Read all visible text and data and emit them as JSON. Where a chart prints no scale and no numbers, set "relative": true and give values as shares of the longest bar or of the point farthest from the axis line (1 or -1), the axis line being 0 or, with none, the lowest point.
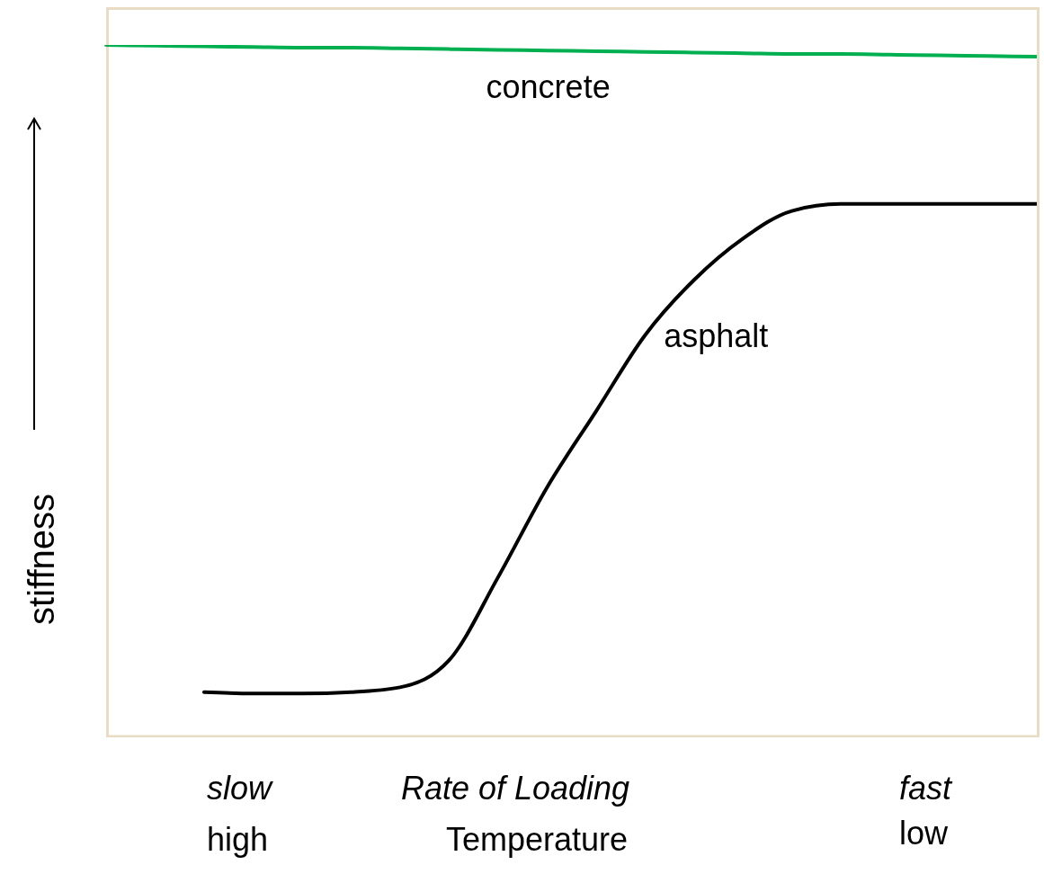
{
  "chart_data": {
    "type": "line",
    "relative": true,
    "ylabel": "stiffness",
    "xlabel": "Rate of Loading",
    "annotations": [
      "slow",
      "fast",
      "high",
      "Temperature",
      "low"
    ],
    "categories": [
      null,
      null,
      null,
      null,
      null,
      null,
      null,
      null,
      null,
      null,
      null,
      null,
      null,
      null,
      null,
      null,
      null,
      null,
      null,
      null
    ],
    "series": [
      {
        "name": "concrete",
        "color": "#00b050",
        "values": [
          1,
          0.999,
          0.998,
          0.997,
          0.996,
          0.996,
          0.995,
          0.994,
          0.993,
          0.992,
          0.991,
          0.99,
          0.989,
          0.988,
          0.987,
          0.987,
          0.986,
          0.985,
          0.984,
          0.983
        ]
      },
      {
        "name": "asphalt",
        "color": "#000000",
        "values": [
          null,
          null,
          0.064,
          0.062,
          0.062,
          0.064,
          0.071,
          0.11,
          0.23,
          0.36,
          0.47,
          0.58,
          0.66,
          0.72,
          0.76,
          0.77,
          0.77,
          0.77,
          0.77,
          0.77
        ]
      }
    ],
    "grid": false,
    "legend": false,
    "marker": "none",
    "line_style": "solid"
  }
}
